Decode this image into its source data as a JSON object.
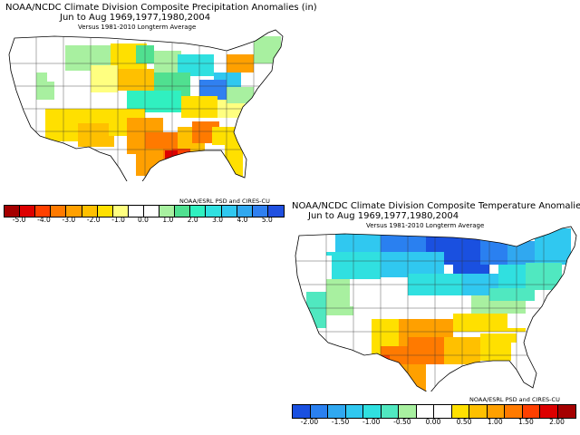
{
  "precip": {
    "title_line1": "NOAA/NCDC Climate Division Composite Precipitation Anomalies (in)",
    "title_line2": "Jun to Aug   1969,1977,1980,2004",
    "title_line3": "Versus 1981-2010 Longterm Average",
    "credit": "NOAA/ESRL PSD and CIRES-CU",
    "legend_colors": [
      "#a50000",
      "#dd0000",
      "#ff4000",
      "#ff7a00",
      "#ffa000",
      "#ffc000",
      "#ffe000",
      "#ffff80",
      "#ffffff",
      "#ffffff",
      "#a8f0a0",
      "#50e090",
      "#30f0c0",
      "#30e0e0",
      "#30c8f0",
      "#30a8f0",
      "#3080f0",
      "#2050e0"
    ],
    "legend_labels": [
      "-5.0",
      "-4.0",
      "-3.0",
      "-2.0",
      "-1.0",
      "0.0",
      "1.0",
      "2.0",
      "3.0",
      "4.0",
      "5.0"
    ]
  },
  "temp": {
    "title_line1": "NOAA/NCDC Climate Division Composite Temperature Anomalies (F)",
    "title_line2": "Jun to Aug   1969,1977,1980,2004",
    "title_line3": "Versus 1981-2010 Longterm Average",
    "credit": "NOAA/ESRL PSD and CIRES-CU",
    "legend_colors": [
      "#1a50e0",
      "#2a80f0",
      "#30a8f0",
      "#30c8f0",
      "#30e0e0",
      "#50e8c0",
      "#a8f0a0",
      "#ffffff",
      "#ffffff",
      "#ffe000",
      "#ffc000",
      "#ffa000",
      "#ff7a00",
      "#ff4000",
      "#dd0000",
      "#a50000"
    ],
    "legend_labels": [
      "-2.00",
      "-1.50",
      "-1.00",
      "-0.50",
      "0.00",
      "0.50",
      "1.00",
      "1.50",
      "2.00"
    ]
  }
}
